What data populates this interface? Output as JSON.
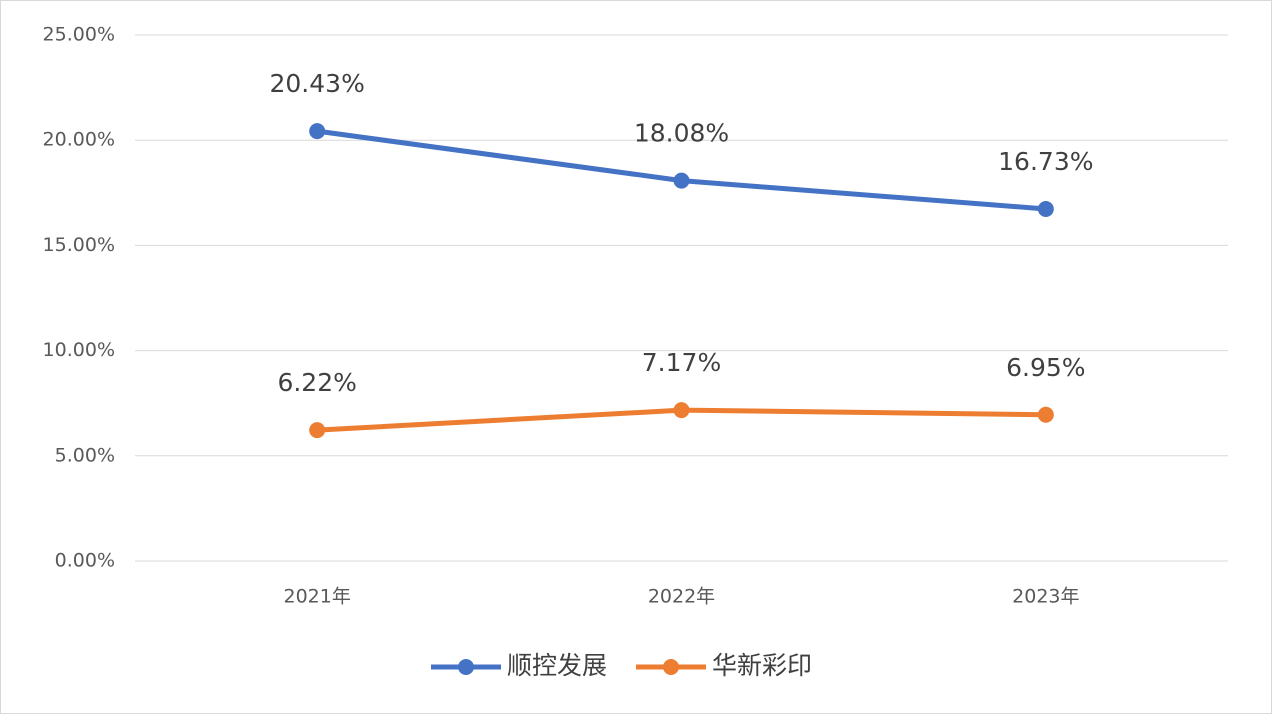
{
  "chart_data": {
    "type": "line",
    "categories": [
      "2021年",
      "2022年",
      "2023年"
    ],
    "series": [
      {
        "name": "顺控发展",
        "color": "#4472c4",
        "values": [
          20.43,
          18.08,
          16.73
        ],
        "value_labels": [
          "20.43%",
          "18.08%",
          "16.73%"
        ]
      },
      {
        "name": "华新彩印",
        "color": "#ed7d31",
        "values": [
          6.22,
          7.17,
          6.95
        ],
        "value_labels": [
          "6.22%",
          "7.17%",
          "6.95%"
        ]
      }
    ],
    "ylim": [
      0,
      25
    ],
    "yticks": [
      {
        "value": 0,
        "label": "0.00%"
      },
      {
        "value": 5,
        "label": "5.00%"
      },
      {
        "value": 10,
        "label": "10.00%"
      },
      {
        "value": 15,
        "label": "15.00%"
      },
      {
        "value": 20,
        "label": "20.00%"
      },
      {
        "value": 25,
        "label": "25.00%"
      }
    ],
    "grid": true,
    "legend": "bottom"
  }
}
